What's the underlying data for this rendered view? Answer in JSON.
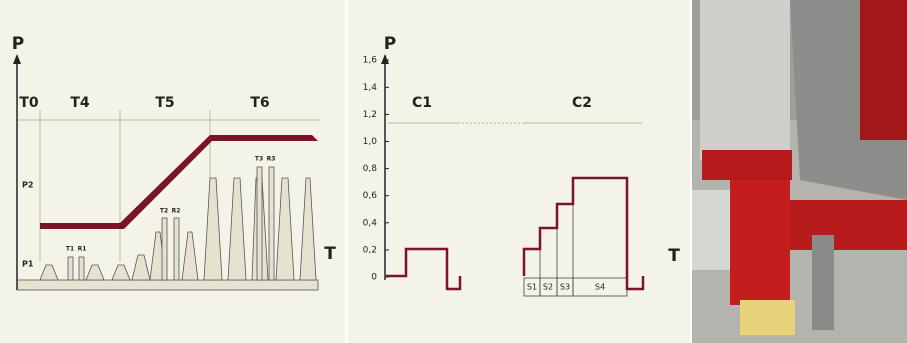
{
  "left_diagram": {
    "axis_y": "P",
    "axis_x": "T",
    "phases": [
      "T0",
      "T4",
      "T5",
      "T6"
    ],
    "levels": [
      "P1",
      "P2"
    ],
    "pulses": [
      "T1",
      "R1",
      "T2",
      "R2",
      "T3",
      "R3"
    ]
  },
  "right_diagram": {
    "axis_y": "P",
    "axis_x": "T",
    "yticks": [
      "0",
      "0,2",
      "0,4",
      "0,6",
      "0,8",
      "1,0",
      "1,2",
      "1,4",
      "1,6"
    ],
    "cycles": [
      "C1",
      "C2"
    ],
    "steps": [
      "S1",
      "S2",
      "S3",
      "S4"
    ]
  }
}
